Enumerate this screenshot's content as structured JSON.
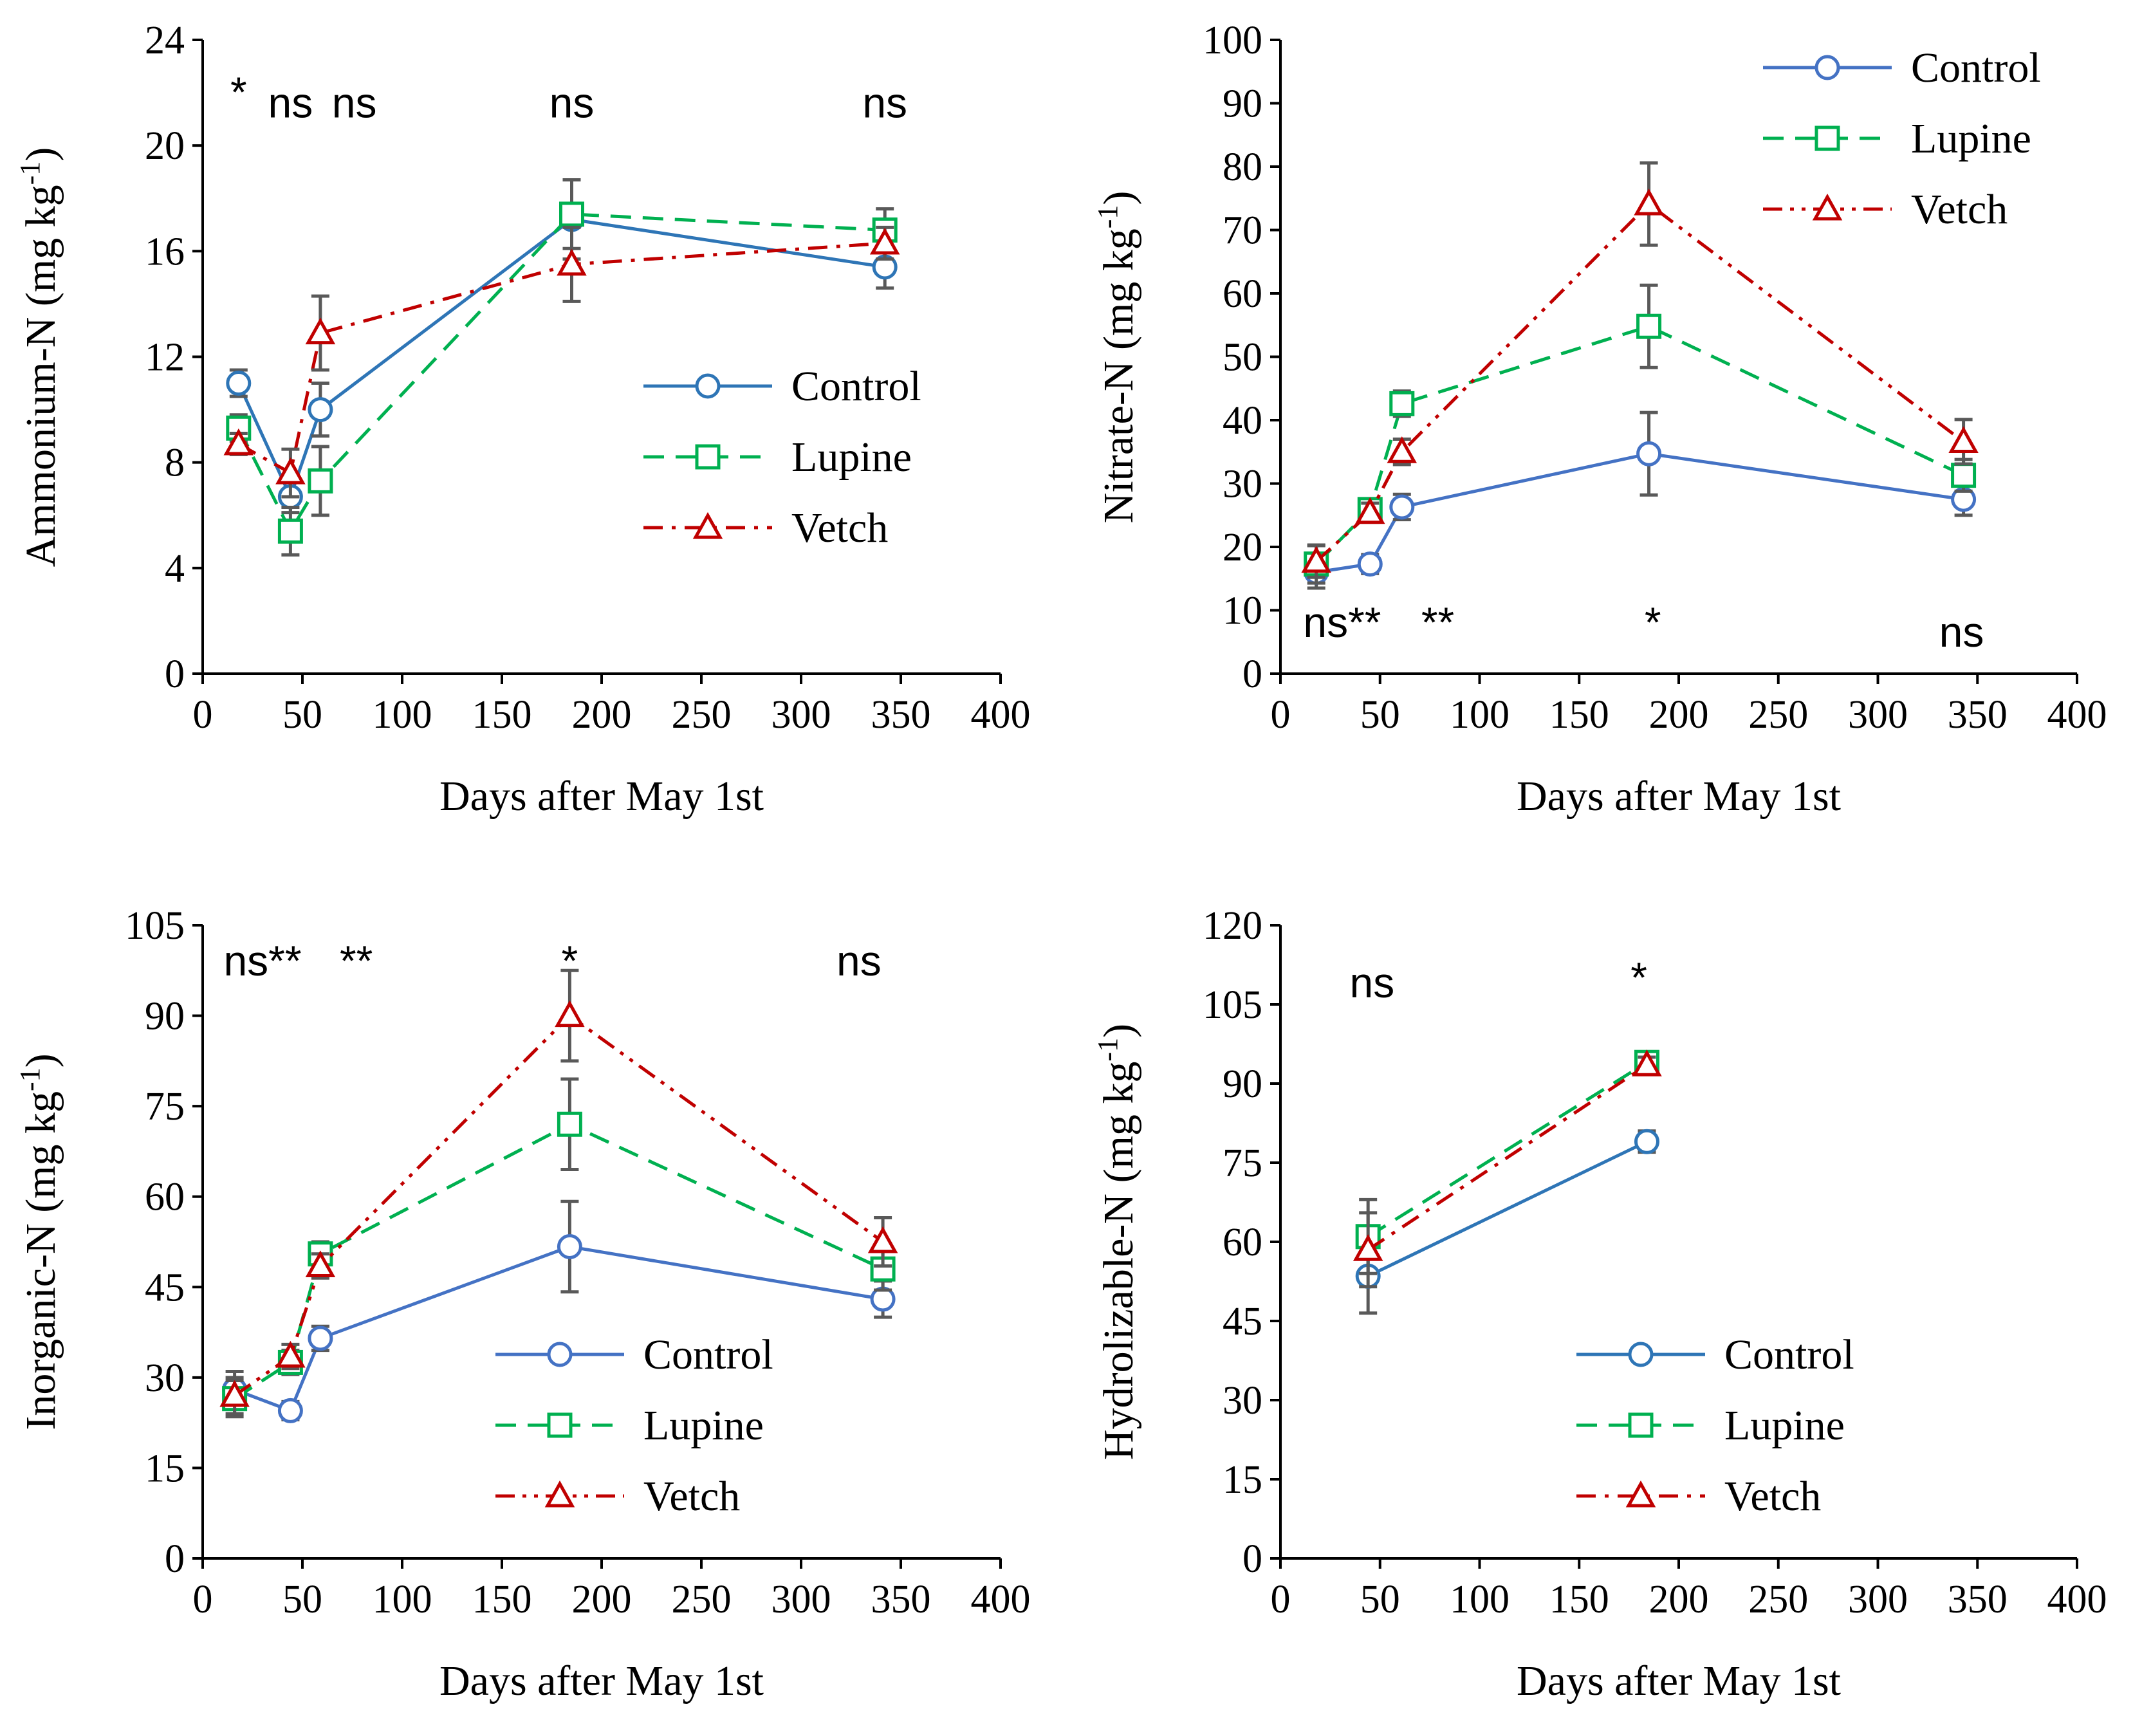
{
  "chart_data": [
    {
      "type": "line",
      "title": "",
      "xlabel": "Days after May 1st",
      "ylabel": "Ammonium-N (mg kg",
      "ylabel_sup": "-1",
      "ylabel_close": ")",
      "xlim": [
        0,
        400
      ],
      "ylim": [
        0,
        24
      ],
      "x_ticks": [
        "0",
        "50",
        "100",
        "150",
        "200",
        "250",
        "300",
        "350",
        "400"
      ],
      "y_ticks": [
        "0",
        "4",
        "8",
        "12",
        "16",
        "20",
        "24"
      ],
      "grid": false,
      "legend_position": "center-right",
      "series": [
        {
          "name": "Control",
          "color": "#2e75b6",
          "marker": "circle",
          "dash": "solid",
          "points": [
            [
              18,
              11.0
            ],
            [
              44,
              6.7
            ],
            [
              59,
              10.0
            ],
            [
              185,
              17.2
            ],
            [
              342,
              15.4
            ]
          ],
          "errors": [
            0.5,
            0.6,
            1.0,
            1.5,
            0.8
          ]
        },
        {
          "name": "Lupine",
          "color": "#00b050",
          "marker": "square",
          "dash": "dashed",
          "points": [
            [
              18,
              9.3
            ],
            [
              44,
              5.4
            ],
            [
              59,
              7.3
            ],
            [
              185,
              17.4
            ],
            [
              342,
              16.8
            ]
          ],
          "errors": [
            0.5,
            0.9,
            1.3,
            1.3,
            0.8
          ]
        },
        {
          "name": "Vetch",
          "color": "#c00000",
          "marker": "triangle",
          "dash": "dashdot",
          "points": [
            [
              18,
              8.7
            ],
            [
              44,
              7.6
            ],
            [
              59,
              12.9
            ],
            [
              185,
              15.5
            ],
            [
              342,
              16.3
            ]
          ],
          "errors": [
            0.4,
            0.9,
            1.4,
            1.4,
            0.6
          ]
        }
      ],
      "annotations": [
        {
          "text": "*",
          "x": 18,
          "y": 22
        },
        {
          "text": "ns",
          "x": 44,
          "y": 21.6
        },
        {
          "text": "ns",
          "x": 76,
          "y": 21.6
        },
        {
          "text": "ns",
          "x": 185,
          "y": 21.6
        },
        {
          "text": "ns",
          "x": 342,
          "y": 21.6
        }
      ]
    },
    {
      "type": "line",
      "title": "",
      "xlabel": "Days after May 1st",
      "ylabel": "Nitrate-N (mg kg",
      "ylabel_sup": "-1",
      "ylabel_close": ")",
      "xlim": [
        0,
        400
      ],
      "ylim": [
        0,
        100
      ],
      "x_ticks": [
        "0",
        "50",
        "100",
        "150",
        "200",
        "250",
        "300",
        "350",
        "400"
      ],
      "y_ticks": [
        "0",
        "10",
        "20",
        "30",
        "40",
        "50",
        "60",
        "70",
        "80",
        "90",
        "100"
      ],
      "grid": false,
      "legend_position": "top-right",
      "series": [
        {
          "name": "Control",
          "color": "#4472c4",
          "marker": "circle",
          "dash": "solid",
          "points": [
            [
              18,
              16.0
            ],
            [
              45,
              17.3
            ],
            [
              61,
              26.3
            ],
            [
              185,
              34.7
            ],
            [
              343,
              27.5
            ]
          ],
          "errors": [
            2.5,
            1.5,
            2.0,
            6.5,
            2.5
          ]
        },
        {
          "name": "Lupine",
          "color": "#00b050",
          "marker": "square",
          "dash": "dashed",
          "points": [
            [
              18,
              17.3
            ],
            [
              45,
              25.9
            ],
            [
              61,
              42.6
            ],
            [
              185,
              54.8
            ],
            [
              343,
              31.3
            ]
          ],
          "errors": [
            3.0,
            1.5,
            2.0,
            6.5,
            2.5
          ]
        },
        {
          "name": "Vetch",
          "color": "#c00000",
          "marker": "triangle",
          "dash": "dashdotdot",
          "points": [
            [
              18,
              17.7
            ],
            [
              45,
              25.4
            ],
            [
              61,
              35.0
            ],
            [
              185,
              74.1
            ],
            [
              343,
              36.6
            ]
          ],
          "errors": [
            2.5,
            1.5,
            2.0,
            6.5,
            3.5
          ]
        }
      ],
      "annotations": [
        {
          "text": "ns**",
          "x": 31,
          "y": 8
        },
        {
          "text": "**",
          "x": 79,
          "y": 8
        },
        {
          "text": "*",
          "x": 187,
          "y": 8
        },
        {
          "text": "ns",
          "x": 342,
          "y": 6.5
        }
      ]
    },
    {
      "type": "line",
      "title": "",
      "xlabel": "Days after May 1st",
      "ylabel": "Inorganic-N (mg kg",
      "ylabel_sup": "-1",
      "ylabel_close": ")",
      "xlim": [
        0,
        400
      ],
      "ylim": [
        0,
        105
      ],
      "x_ticks": [
        "0",
        "50",
        "100",
        "150",
        "200",
        "250",
        "300",
        "350",
        "400"
      ],
      "y_ticks": [
        "0",
        "15",
        "30",
        "45",
        "60",
        "75",
        "90",
        "105"
      ],
      "grid": false,
      "legend_position": "bottom-right",
      "series": [
        {
          "name": "Control",
          "color": "#4472c4",
          "marker": "circle",
          "dash": "solid",
          "points": [
            [
              16,
              28.0
            ],
            [
              44,
              24.5
            ],
            [
              59,
              36.5
            ],
            [
              184,
              51.7
            ],
            [
              341,
              43.0
            ]
          ],
          "errors": [
            3.0,
            1.5,
            2.0,
            7.5,
            3.0
          ]
        },
        {
          "name": "Lupine",
          "color": "#00b050",
          "marker": "square",
          "dash": "dashed",
          "points": [
            [
              16,
              26.5
            ],
            [
              44,
              32.5
            ],
            [
              59,
              50.5
            ],
            [
              184,
              72.0
            ],
            [
              341,
              48.0
            ]
          ],
          "errors": [
            3.0,
            2.0,
            2.0,
            7.5,
            3.5
          ]
        },
        {
          "name": "Vetch",
          "color": "#c00000",
          "marker": "triangle",
          "dash": "dashdotdot",
          "points": [
            [
              16,
              27.0
            ],
            [
              44,
              33.5
            ],
            [
              59,
              48.5
            ],
            [
              184,
              90.0
            ],
            [
              341,
              52.5
            ]
          ],
          "errors": [
            3.0,
            2.0,
            2.0,
            7.5,
            4.0
          ]
        }
      ],
      "annotations": [
        {
          "text": "ns**",
          "x": 30,
          "y": 99
        },
        {
          "text": "**",
          "x": 77,
          "y": 99
        },
        {
          "text": "*",
          "x": 184,
          "y": 99
        },
        {
          "text": "ns",
          "x": 329,
          "y": 99
        }
      ]
    },
    {
      "type": "line",
      "title": "",
      "xlabel": "Days after May 1st",
      "ylabel": "Hydrolizable-N (mg kg",
      "ylabel_sup": "-1",
      "ylabel_close": ")",
      "xlim": [
        0,
        400
      ],
      "ylim": [
        0,
        120
      ],
      "x_ticks": [
        "0",
        "50",
        "100",
        "150",
        "200",
        "250",
        "300",
        "350",
        "400"
      ],
      "y_ticks": [
        "0",
        "15",
        "30",
        "45",
        "60",
        "75",
        "90",
        "105",
        "120"
      ],
      "grid": false,
      "legend_position": "bottom-right",
      "series": [
        {
          "name": "Control",
          "color": "#2e75b6",
          "marker": "circle",
          "dash": "solid",
          "points": [
            [
              44,
              53.5
            ],
            [
              184,
              79.0
            ]
          ],
          "errors": [
            7.0,
            2.0
          ]
        },
        {
          "name": "Lupine",
          "color": "#00b050",
          "marker": "square",
          "dash": "dashed",
          "points": [
            [
              44,
              61.0
            ],
            [
              184,
              94.0
            ]
          ],
          "errors": [
            7.0,
            1.5
          ]
        },
        {
          "name": "Vetch",
          "color": "#c00000",
          "marker": "triangle",
          "dash": "dashdot",
          "points": [
            [
              44,
              58.5
            ],
            [
              184,
              93.5
            ]
          ],
          "errors": [
            7.0,
            1.5
          ]
        }
      ],
      "annotations": [
        {
          "text": "ns",
          "x": 46,
          "y": 109
        },
        {
          "text": "*",
          "x": 180,
          "y": 110
        }
      ]
    }
  ],
  "colors": {
    "axis": "#000000",
    "errorbar": "#595959"
  }
}
